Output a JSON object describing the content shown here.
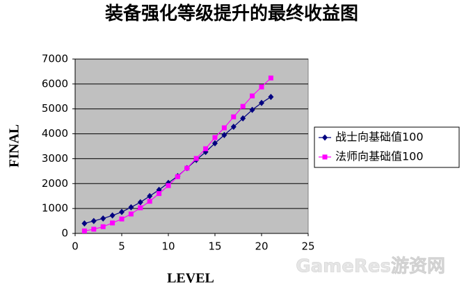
{
  "chart_data": {
    "type": "line",
    "title": "装备强化等级提升的最终收益图",
    "x_label": "LEVEL",
    "y_label": "FINAL",
    "x": [
      1,
      2,
      3,
      4,
      5,
      6,
      7,
      8,
      9,
      10,
      11,
      12,
      13,
      14,
      15,
      16,
      17,
      18,
      19,
      20,
      21
    ],
    "series": [
      {
        "name": "战士向基础值100",
        "color": "#000080",
        "marker": "diamond",
        "values": [
          400,
          500,
          600,
          720,
          860,
          1050,
          1250,
          1500,
          1750,
          2030,
          2300,
          2620,
          2950,
          3270,
          3620,
          3950,
          4280,
          4620,
          4960,
          5240,
          5480
        ]
      },
      {
        "name": "法师向基础值100",
        "color": "#ff00ff",
        "marker": "square",
        "values": [
          100,
          170,
          270,
          420,
          580,
          780,
          1030,
          1290,
          1600,
          1920,
          2280,
          2620,
          3010,
          3400,
          3850,
          4240,
          4680,
          5100,
          5520,
          5880,
          6240
        ]
      }
    ],
    "xlim": [
      0,
      25
    ],
    "xticks": [
      0,
      5,
      10,
      15,
      20,
      25
    ],
    "ylim": [
      0,
      7000
    ],
    "yticks": [
      0,
      1000,
      2000,
      3000,
      4000,
      5000,
      6000,
      7000
    ],
    "grid": true,
    "plot_background": "#c0c0c0",
    "legend_position": "right",
    "watermark": "GameRes游资网"
  }
}
